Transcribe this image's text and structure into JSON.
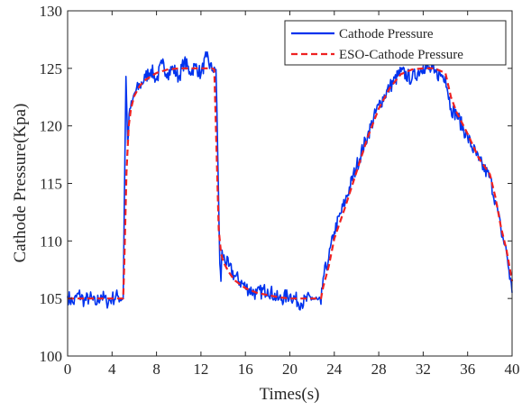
{
  "chart_data": {
    "type": "line",
    "title": "",
    "xlabel": "Times(s)",
    "ylabel": "Cathode Pressure(Kpa)",
    "xlim": [
      0,
      40
    ],
    "ylim": [
      100,
      130
    ],
    "xticks": [
      0,
      4,
      8,
      12,
      16,
      20,
      24,
      28,
      32,
      36,
      40
    ],
    "yticks": [
      100,
      105,
      110,
      115,
      120,
      125,
      130
    ],
    "grid": false,
    "legend_position": "top-right",
    "series": [
      {
        "name": "Cathode Pressure",
        "color": "#0033ee",
        "style": "solid",
        "x": [
          0,
          0.5,
          1,
          1.5,
          2,
          2.5,
          3,
          3.5,
          4,
          4.5,
          5,
          5.1,
          5.25,
          5.4,
          5.6,
          5.8,
          6.0,
          6.5,
          7,
          7.5,
          8,
          8.5,
          9,
          9.5,
          10,
          10.5,
          11,
          11.5,
          12,
          12.5,
          13,
          13.2,
          13.35,
          13.5,
          13.7,
          13.8,
          13.9,
          14,
          14.5,
          15,
          16,
          17,
          18,
          19,
          20,
          21,
          22,
          22.8,
          23,
          23.5,
          24,
          25,
          26,
          27,
          28,
          29,
          30,
          31,
          32,
          33,
          34,
          34.5,
          35,
          36,
          37,
          38,
          38.5,
          39,
          39.5,
          40
        ],
        "values": [
          105.2,
          104.6,
          105.4,
          104.8,
          105.1,
          104.5,
          105.3,
          104.7,
          105.0,
          105.2,
          105.0,
          113.0,
          124.3,
          118.5,
          121.5,
          121.8,
          122.8,
          123.5,
          124.2,
          124.9,
          124.0,
          125.4,
          124.6,
          125.0,
          124.2,
          125.6,
          124.7,
          125.2,
          124.5,
          126.0,
          124.8,
          125.1,
          124.9,
          118.0,
          108.0,
          106.5,
          109.2,
          108.6,
          107.8,
          107.0,
          106.0,
          105.4,
          105.8,
          104.9,
          105.3,
          104.6,
          105.1,
          104.5,
          106.8,
          108.5,
          110.8,
          113.5,
          116.5,
          119.2,
          121.8,
          123.4,
          124.7,
          124.1,
          125.2,
          124.6,
          124.3,
          121.5,
          121.0,
          119.0,
          117.0,
          115.5,
          113.5,
          111.0,
          109.0,
          105.5
        ]
      },
      {
        "name": "ESO-Cathode Pressure",
        "color": "#ee2222",
        "style": "dashed",
        "x": [
          0,
          1,
          2,
          3,
          4,
          5,
          5.1,
          5.3,
          5.5,
          5.7,
          6.0,
          6.5,
          7,
          8,
          9,
          10,
          11,
          12,
          13,
          13.2,
          13.4,
          13.6,
          13.8,
          14.0,
          14.5,
          15,
          16,
          17,
          18,
          19,
          20,
          21,
          22,
          22.8,
          23,
          23.5,
          24,
          25,
          26,
          27,
          28,
          29,
          30,
          31,
          32,
          33,
          34,
          34.5,
          35,
          36,
          37,
          38,
          38.5,
          39,
          39.5,
          40
        ],
        "values": [
          105.0,
          105.0,
          105.0,
          105.0,
          105.0,
          105.0,
          108.0,
          116.0,
          120.0,
          121.5,
          122.6,
          123.5,
          124.0,
          124.6,
          124.9,
          125.0,
          125.0,
          125.0,
          125.0,
          124.9,
          118.0,
          111.0,
          109.0,
          108.2,
          107.3,
          106.6,
          105.9,
          105.5,
          105.3,
          105.1,
          105.0,
          105.0,
          105.0,
          105.0,
          106.0,
          107.8,
          110.2,
          113.0,
          116.0,
          119.0,
          121.5,
          123.3,
          124.5,
          124.9,
          125.0,
          125.0,
          124.6,
          122.5,
          121.2,
          119.3,
          117.2,
          115.8,
          113.8,
          111.2,
          109.2,
          106.5
        ]
      }
    ]
  }
}
